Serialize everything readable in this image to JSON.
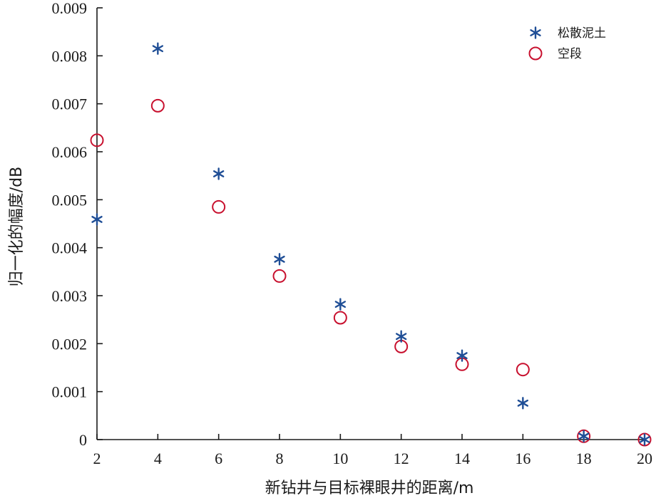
{
  "chart_data": {
    "type": "scatter",
    "xlabel": "新钻井与目标裸眼井的距离/m",
    "ylabel": "归一化的幅度/dB",
    "xlim": [
      2,
      20
    ],
    "ylim": [
      0,
      0.009
    ],
    "x_ticks": [
      2,
      4,
      6,
      8,
      10,
      12,
      14,
      16,
      18,
      20
    ],
    "x_tick_labels": [
      "2",
      "4",
      "6",
      "8",
      "10",
      "12",
      "14",
      "16",
      "18",
      "20"
    ],
    "y_ticks": [
      0,
      0.001,
      0.002,
      0.003,
      0.004,
      0.005,
      0.006,
      0.007,
      0.008,
      0.009
    ],
    "y_tick_labels": [
      "0",
      "0.001",
      "0.002",
      "0.003",
      "0.004",
      "0.005",
      "0.006",
      "0.007",
      "0.008",
      "0.009"
    ],
    "grid": false,
    "legend_position": "top-right",
    "series": [
      {
        "name": "松散泥土",
        "marker": "asterisk",
        "color": "#1f4e96",
        "x": [
          2,
          4,
          6,
          8,
          10,
          12,
          14,
          16,
          18,
          20
        ],
        "y": [
          0.00459,
          0.00815,
          0.00554,
          0.00376,
          0.00282,
          0.00215,
          0.00175,
          0.00076,
          7e-05,
          0.0
        ]
      },
      {
        "name": "空段",
        "marker": "circle",
        "color": "#c8102e",
        "x": [
          2,
          4,
          6,
          8,
          10,
          12,
          14,
          16,
          18,
          20
        ],
        "y": [
          0.00624,
          0.00696,
          0.00485,
          0.00341,
          0.00254,
          0.00194,
          0.00157,
          0.00146,
          7e-05,
          0.0
        ]
      }
    ]
  }
}
